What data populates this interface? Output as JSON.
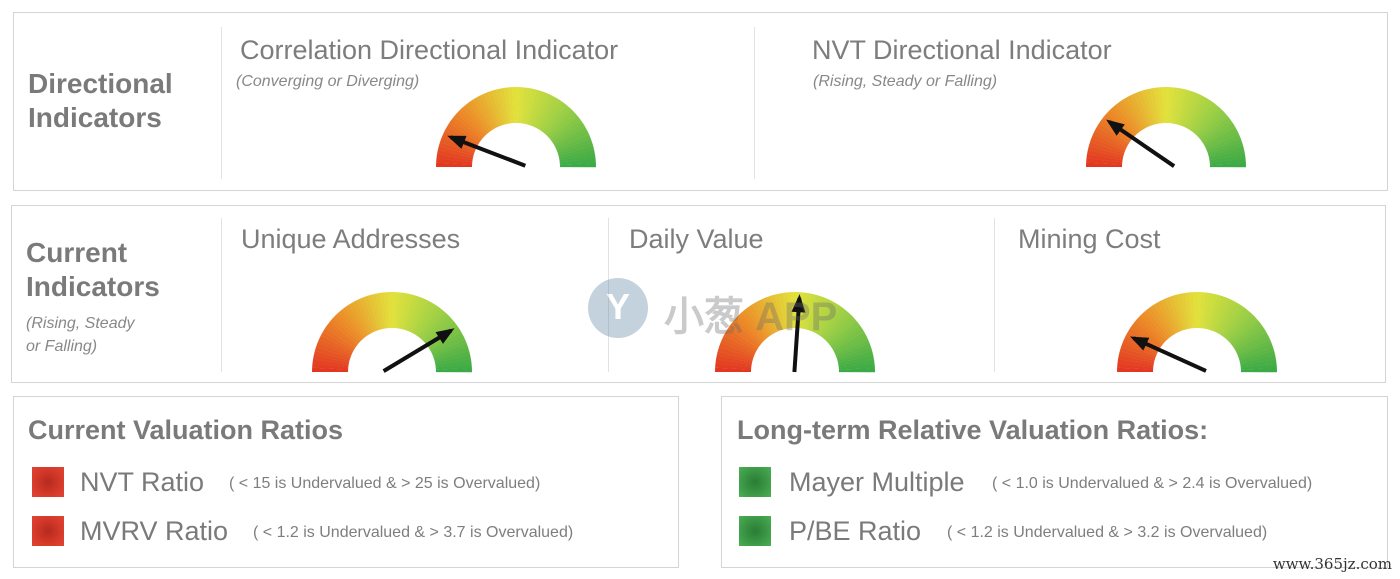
{
  "directional": {
    "section_title_line1": "Directional",
    "section_title_line2": "Indicators",
    "gauges": [
      {
        "title": "Correlation Directional Indicator",
        "subtitle": "(Converging or Diverging)",
        "needle_fraction": 0.12
      },
      {
        "title": "NVT Directional Indicator",
        "subtitle": "(Rising, Steady or Falling)",
        "needle_fraction": 0.2
      }
    ]
  },
  "current": {
    "section_title_line1": "Current",
    "section_title_line2": "Indicators",
    "section_sub_line1": "(Rising, Steady",
    "section_sub_line2": "or Falling)",
    "gauges": [
      {
        "title": "Unique Addresses",
        "needle_fraction": 0.82
      },
      {
        "title": "Daily Value",
        "needle_fraction": 0.52
      },
      {
        "title": "Mining Cost",
        "needle_fraction": 0.14
      }
    ]
  },
  "current_valuation": {
    "title": "Current Valuation Ratios",
    "rows": [
      {
        "label": "NVT Ratio",
        "note": "( < 15 is Undervalued  &  > 25 is Overvalued)",
        "status_color": "#d63a2a"
      },
      {
        "label": "MVRV Ratio",
        "note": "( < 1.2 is Undervalued  &  > 3.7 is Overvalued)",
        "status_color": "#d63a2a"
      }
    ]
  },
  "longterm_valuation": {
    "title": "Long-term Relative Valuation Ratios:",
    "rows": [
      {
        "label": "Mayer Multiple",
        "note": "( < 1.0 is Undervalued  &  > 2.4 is Overvalued)",
        "status_color": "#3d9a47"
      },
      {
        "label": "P/BE Ratio",
        "note": "( < 1.2 is Undervalued  &  > 3.2 is Overvalued)",
        "status_color": "#3d9a47"
      }
    ]
  },
  "watermark": {
    "text": "小葱 APP",
    "glyph": "Y"
  },
  "site": "www.365jz.com"
}
